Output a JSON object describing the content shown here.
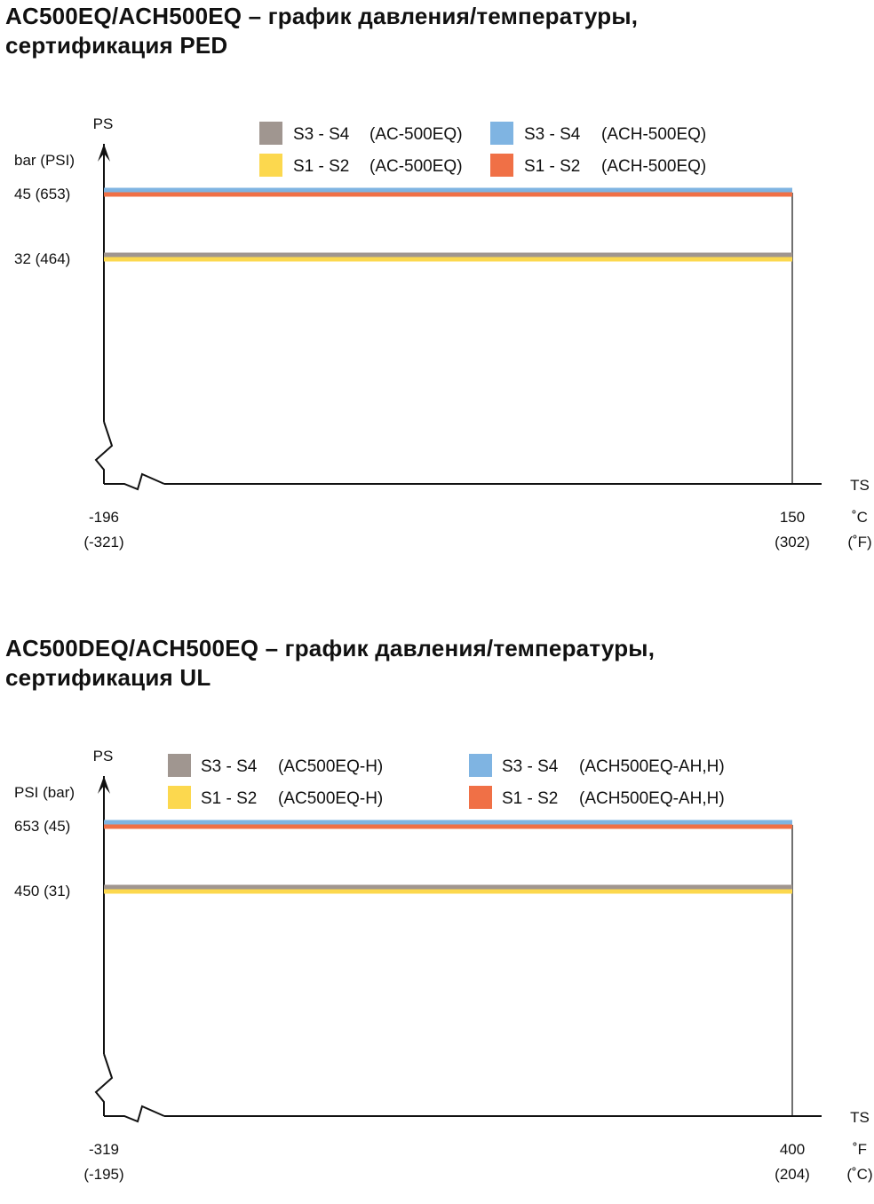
{
  "colors": {
    "brown": "#a09690",
    "yellow": "#fcd84e",
    "blue": "#7fb4e2",
    "orange": "#f07046",
    "axis": "#111111"
  },
  "chart_data": [
    {
      "type": "line",
      "title_lines": [
        "AC500EQ/ACH500EQ – график давления/температуры,",
        "сертификация PED"
      ],
      "y_axis_name": "PS",
      "y_unit": "bar (PSI)",
      "x_axis_name": "TS",
      "x_unit_primary": "˚C",
      "x_unit_secondary": "(˚F)",
      "xlim": [
        -196,
        150
      ],
      "x_ticks": [
        {
          "value": -196,
          "primary": "-196",
          "secondary": "(-321)"
        },
        {
          "value": 150,
          "primary": "150",
          "secondary": "(302)"
        }
      ],
      "y_ticks": [
        {
          "value": 45,
          "label": "45  (653)"
        },
        {
          "value": 32,
          "label": "32  (464)"
        }
      ],
      "legend": [
        {
          "key": "brown",
          "range": "S3 - S4",
          "model": "(AC-500EQ)"
        },
        {
          "key": "blue",
          "range": "S3 - S4",
          "model": "(ACH-500EQ)"
        },
        {
          "key": "yellow",
          "range": "S1 - S2",
          "model": "(AC-500EQ)"
        },
        {
          "key": "orange",
          "range": "S1 - S2",
          "model": "(ACH-500EQ)"
        }
      ],
      "series": [
        {
          "key": "blue",
          "range": "S3 - S4",
          "model": "(ACH-500EQ)",
          "x": [
            -196,
            150
          ],
          "y": [
            45,
            45
          ]
        },
        {
          "key": "orange",
          "range": "S1 - S2",
          "model": "(ACH-500EQ)",
          "x": [
            -196,
            150
          ],
          "y": [
            45,
            45
          ]
        },
        {
          "key": "brown",
          "range": "S3 - S4",
          "model": "(AC-500EQ)",
          "x": [
            -196,
            150
          ],
          "y": [
            32,
            32
          ]
        },
        {
          "key": "yellow",
          "range": "S1 - S2",
          "model": "(AC-500EQ)",
          "x": [
            -196,
            150
          ],
          "y": [
            32,
            32
          ]
        }
      ]
    },
    {
      "type": "line",
      "title_lines": [
        "AC500DEQ/ACH500EQ – график давления/температуры,",
        "сертификация UL"
      ],
      "y_axis_name": "PS",
      "y_unit": "PSI (bar)",
      "x_axis_name": "TS",
      "x_unit_primary": "˚F",
      "x_unit_secondary": "(˚C)",
      "xlim": [
        -319,
        400
      ],
      "x_ticks": [
        {
          "value": -319,
          "primary": "-319",
          "secondary": "(-195)"
        },
        {
          "value": 400,
          "primary": "400",
          "secondary": "(204)"
        }
      ],
      "y_ticks": [
        {
          "value": 653,
          "label": "653 (45)"
        },
        {
          "value": 450,
          "label": "450 (31)"
        }
      ],
      "legend": [
        {
          "key": "brown",
          "range": "S3 - S4",
          "model": "(AC500EQ-H)"
        },
        {
          "key": "blue",
          "range": "S3 - S4",
          "model": "(ACH500EQ-AH,H)"
        },
        {
          "key": "yellow",
          "range": "S1 - S2",
          "model": "(AC500EQ-H)"
        },
        {
          "key": "orange",
          "range": "S1 - S2",
          "model": "(ACH500EQ-AH,H)"
        }
      ],
      "series": [
        {
          "key": "blue",
          "range": "S3 - S4",
          "model": "(ACH500EQ-AH,H)",
          "x": [
            -319,
            400
          ],
          "y": [
            653,
            653
          ]
        },
        {
          "key": "orange",
          "range": "S1 - S2",
          "model": "(ACH500EQ-AH,H)",
          "x": [
            -319,
            400
          ],
          "y": [
            653,
            653
          ]
        },
        {
          "key": "brown",
          "range": "S3 - S4",
          "model": "(AC500EQ-H)",
          "x": [
            -319,
            400
          ],
          "y": [
            450,
            450
          ]
        },
        {
          "key": "yellow",
          "range": "S1 - S2",
          "model": "(AC500EQ-H)",
          "x": [
            -319,
            400
          ],
          "y": [
            450,
            450
          ]
        }
      ]
    }
  ]
}
